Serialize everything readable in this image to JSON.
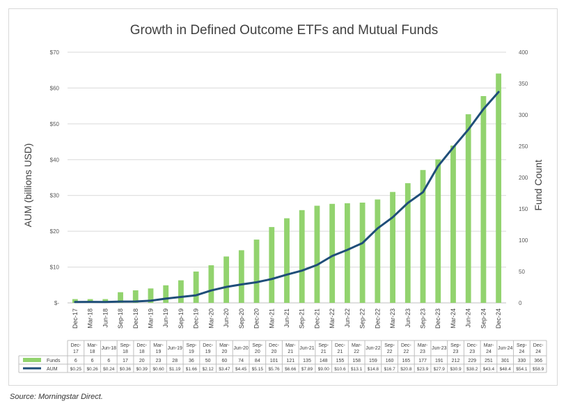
{
  "chart_data": {
    "type": "bar-line-combo",
    "title": "Growth in Defined Outcome ETFs and Mutual Funds",
    "ylabel_left": "AUM (billions USD)",
    "ylabel_right": "Fund Count",
    "ylim_left": [
      0,
      70
    ],
    "ylim_right": [
      0,
      400
    ],
    "left_ticks": [
      "$-",
      "$10",
      "$20",
      "$30",
      "$40",
      "$50",
      "$60",
      "$70"
    ],
    "right_ticks": [
      "0",
      "50",
      "100",
      "150",
      "200",
      "250",
      "300",
      "350",
      "400"
    ],
    "grid": true,
    "categories": [
      "Dec-17",
      "Mar-18",
      "Jun-18",
      "Sep-18",
      "Dec-18",
      "Mar-19",
      "Jun-19",
      "Sep-19",
      "Dec-19",
      "Mar-20",
      "Jun-20",
      "Sep-20",
      "Dec-20",
      "Mar-21",
      "Jun-21",
      "Sep-21",
      "Dec-21",
      "Mar-22",
      "Jun-22",
      "Sep-22",
      "Dec-22",
      "Mar-23",
      "Jun-23",
      "Sep-23",
      "Dec-23",
      "Mar-24",
      "Jun-24",
      "Sep-24",
      "Dec-24"
    ],
    "table_categories": [
      "Dec-\n17",
      "Mar-\n18",
      "Jun-18",
      "Sep-\n18",
      "Dec-\n18",
      "Mar-\n19",
      "Jun-19",
      "Sep-\n19",
      "Dec-\n19",
      "Mar-\n20",
      "Jun-20",
      "Sep-\n20",
      "Dec-\n20",
      "Mar-\n21",
      "Jun-21",
      "Sep-\n21",
      "Dec-\n21",
      "Mar-\n22",
      "Jun-22",
      "Sep-\n22",
      "Dec-\n22",
      "Mar-\n23",
      "Jun-23",
      "Sep-\n23",
      "Dec-\n23",
      "Mar-\n24",
      "Jun-24",
      "Sep-\n24",
      "Dec-\n24"
    ],
    "series": [
      {
        "name": "Funds",
        "type": "bar",
        "axis": "right",
        "color": "#92d36e",
        "values": [
          6,
          6,
          6,
          17,
          20,
          23,
          28,
          36,
          50,
          60,
          74,
          84,
          101,
          121,
          135,
          148,
          155,
          158,
          159,
          160,
          165,
          177,
          191,
          212,
          229,
          251,
          301,
          330,
          366
        ]
      },
      {
        "name": "AUM",
        "type": "line",
        "axis": "left",
        "color": "#1f4e79",
        "values": [
          0.25,
          0.26,
          0.24,
          0.36,
          0.39,
          0.6,
          1.19,
          1.66,
          2.12,
          3.47,
          4.45,
          5.15,
          5.76,
          6.66,
          7.89,
          9.0,
          10.6,
          13.1,
          14.8,
          16.7,
          20.8,
          23.9,
          27.9,
          30.9,
          38.2,
          43.4,
          48.4,
          54.1,
          58.9
        ]
      }
    ],
    "table": {
      "funds_row": [
        "6",
        "6",
        "6",
        "17",
        "20",
        "23",
        "28",
        "36",
        "50",
        "60",
        "74",
        "84",
        "101",
        "121",
        "135",
        "148",
        "155",
        "158",
        "159",
        "160",
        "165",
        "177",
        "191",
        "212",
        "229",
        "251",
        "301",
        "330",
        "366"
      ],
      "aum_row": [
        "$0.25",
        "$0.26",
        "$0.24",
        "$0.36",
        "$0.39",
        "$0.60",
        "$1.19",
        "$1.66",
        "$2.12",
        "$3.47",
        "$4.45",
        "$5.15",
        "$5.76",
        "$6.66",
        "$7.89",
        "$9.00",
        "$10.6",
        "$13.1",
        "$14.8",
        "$16.7",
        "$20.8",
        "$23.9",
        "$27.9",
        "$30.9",
        "$38.2",
        "$43.4",
        "$48.4",
        "$54.1",
        "$58.9"
      ]
    }
  },
  "source": "Source: Morningstar Direct."
}
